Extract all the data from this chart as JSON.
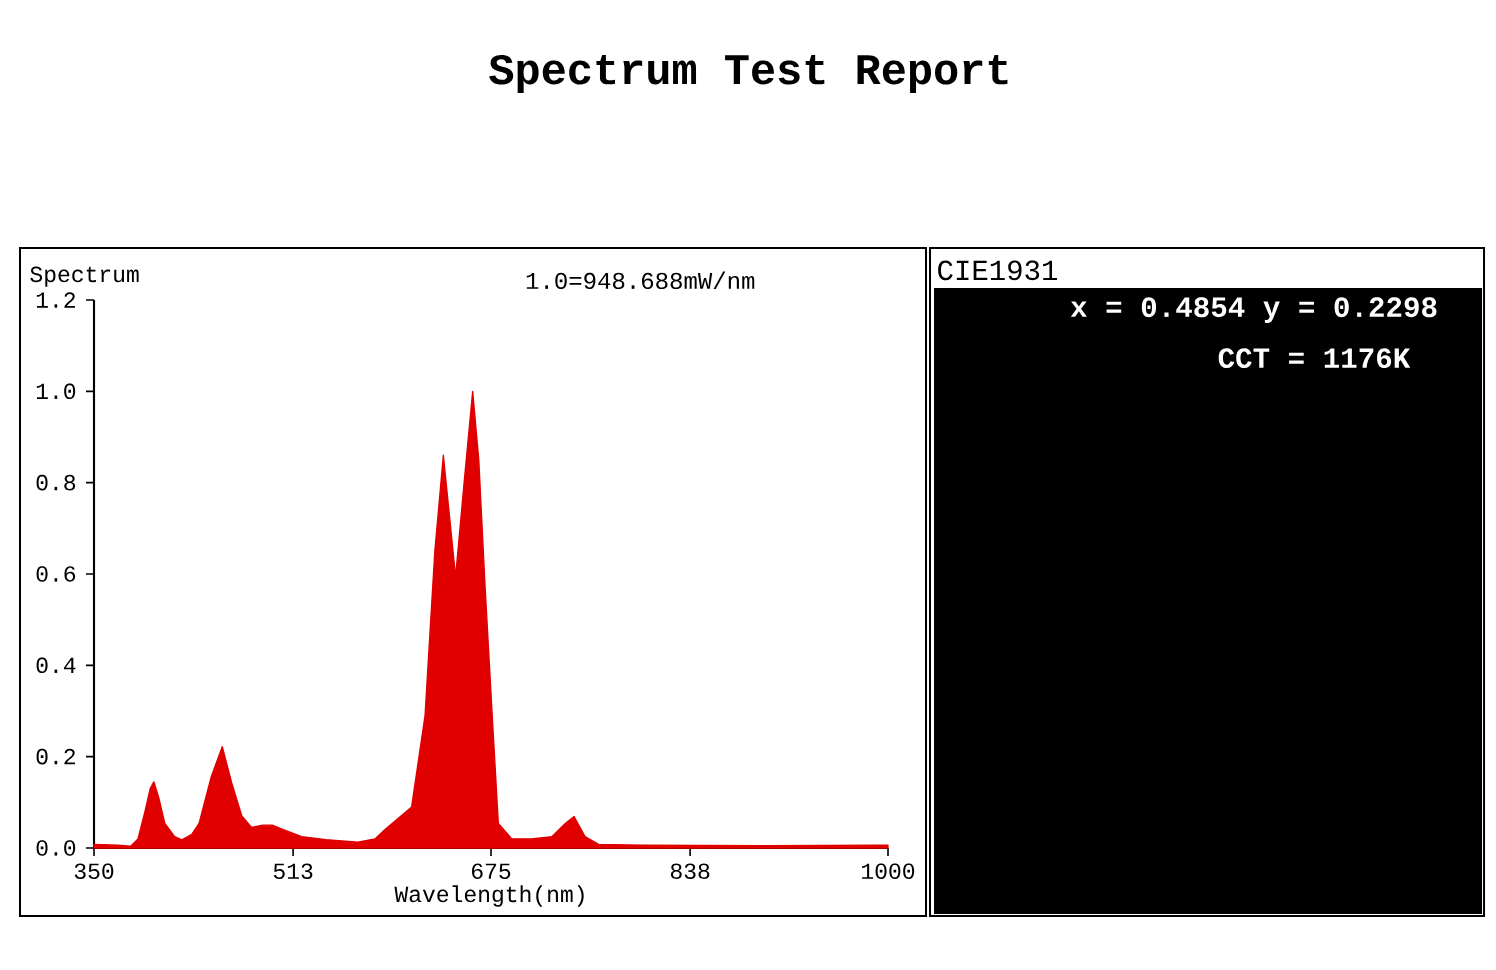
{
  "chart_data": [
    {
      "type": "area",
      "title": "Spectrum Test Report",
      "xlabel": "Wavelength(nm)",
      "ylabel": "Spectrum",
      "annotations": [
        "1.0=948.688mW/nm"
      ],
      "x": [
        350,
        370,
        380,
        386,
        392,
        396,
        399,
        403,
        408,
        416,
        422,
        430,
        436,
        446,
        455,
        463,
        471,
        479,
        488,
        496,
        505,
        520,
        540,
        566,
        580,
        588,
        599,
        610,
        621,
        629,
        636,
        646,
        653,
        660,
        665,
        670,
        676,
        681,
        692,
        708,
        725,
        736,
        743,
        752,
        763,
        800,
        900,
        990,
        1000
      ],
      "values": [
        0.008,
        0.006,
        0.004,
        0.02,
        0.083,
        0.13,
        0.145,
        0.11,
        0.054,
        0.025,
        0.018,
        0.03,
        0.054,
        0.156,
        0.222,
        0.14,
        0.07,
        0.045,
        0.05,
        0.05,
        0.04,
        0.025,
        0.018,
        0.013,
        0.02,
        0.04,
        0.065,
        0.09,
        0.29,
        0.65,
        0.86,
        0.594,
        0.8,
        1.0,
        0.85,
        0.58,
        0.29,
        0.054,
        0.02,
        0.02,
        0.025,
        0.054,
        0.069,
        0.025,
        0.008,
        0.006,
        0.005,
        0.006,
        0.006
      ],
      "color": "#e00000",
      "xlim": [
        350,
        1000
      ],
      "ylim": [
        0,
        1.2
      ],
      "xticks": [
        350,
        513,
        675,
        838,
        1000
      ],
      "yticks": [
        {
          "value": 0,
          "label": "0.0"
        },
        0.2,
        0.4,
        0.6,
        0.8,
        {
          "value": 1,
          "label": "1.0"
        },
        1.2
      ]
    },
    {
      "type": "other",
      "title": "CIE1931",
      "annotations": [
        "x = 0.4854 y = 0.2298",
        "CCT = 1176K"
      ]
    }
  ]
}
